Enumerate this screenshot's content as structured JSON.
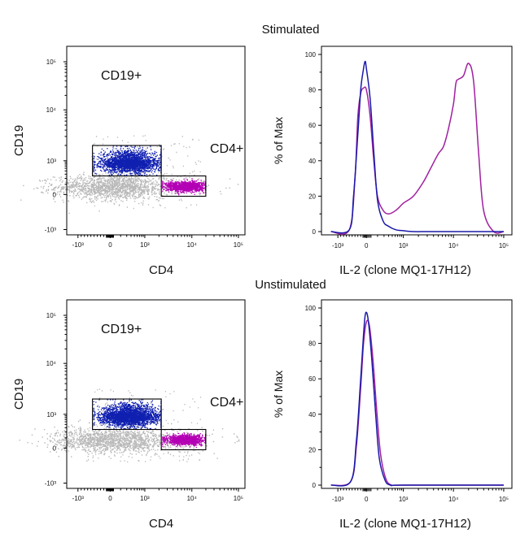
{
  "chart_data": [
    {
      "type": "scatter",
      "panel": "top-left",
      "section_title": "Stimulated",
      "xlabel": "CD4",
      "ylabel": "CD19",
      "x_ticks": [
        "-10³",
        "0",
        "10³",
        "10⁴",
        "10⁵"
      ],
      "y_ticks": [
        "10⁵",
        "10⁴",
        "10³",
        "0",
        "-10³"
      ],
      "gates": [
        {
          "name": "CD19+",
          "label": "CD19+",
          "color": "#1a1aa8"
        },
        {
          "name": "CD4+",
          "label": "CD4+",
          "color": "#b000b0"
        }
      ],
      "populations": [
        {
          "name": "CD19+ (gated)",
          "color": "#0f1fb0",
          "count": 2600
        },
        {
          "name": "CD4+ (gated)",
          "color": "#b400b4",
          "count": 1500
        },
        {
          "name": "ungated",
          "color": "#b8b8b8",
          "count": 1500
        }
      ]
    },
    {
      "type": "line",
      "panel": "top-right",
      "xlabel": "IL-2 (clone MQ1-17H12)",
      "ylabel": "% of Max",
      "x_ticks": [
        "-10³",
        "0",
        "10³",
        "10⁴",
        "10⁵"
      ],
      "y_ticks": [
        "100",
        "80",
        "60",
        "40",
        "20",
        "0"
      ],
      "ylim": [
        0,
        100
      ],
      "x_units": "decade position (-1 = -10³, 0 = 0, 1 = 10³, 2 = 10⁴, 3 = 10⁵)",
      "series": [
        {
          "name": "CD19+",
          "color": "#1a1aa8",
          "x": [
            -1.3,
            -0.6,
            -0.45,
            -0.3,
            -0.2,
            -0.12,
            -0.05,
            0.0,
            0.1,
            0.2,
            0.3,
            0.45,
            0.6,
            0.8,
            1.0,
            1.2,
            1.5,
            2.0,
            2.5,
            3.0
          ],
          "y": [
            0,
            1,
            20,
            55,
            80,
            90,
            96,
            92,
            75,
            45,
            18,
            6,
            3,
            1,
            0.5,
            0,
            0,
            0,
            0,
            0
          ]
        },
        {
          "name": "CD4+",
          "color": "#a020a0",
          "x": [
            -1.3,
            -0.6,
            -0.4,
            -0.3,
            -0.2,
            -0.1,
            0.0,
            0.1,
            0.2,
            0.3,
            0.45,
            0.6,
            0.8,
            1.0,
            1.2,
            1.4,
            1.55,
            1.7,
            1.8,
            1.9,
            2.0,
            2.05,
            2.1,
            2.2,
            2.3,
            2.4,
            2.5,
            2.6,
            2.8,
            3.0
          ],
          "y": [
            0,
            1,
            30,
            65,
            78,
            81,
            80,
            65,
            40,
            20,
            12,
            10,
            12,
            16,
            20,
            28,
            36,
            44,
            48,
            58,
            72,
            84,
            86,
            88,
            95,
            85,
            45,
            12,
            0,
            0
          ]
        }
      ]
    },
    {
      "type": "scatter",
      "panel": "bottom-left",
      "section_title": "Unstimulated",
      "xlabel": "CD4",
      "ylabel": "CD19",
      "x_ticks": [
        "-10³",
        "0",
        "10³",
        "10⁴",
        "10⁵"
      ],
      "y_ticks": [
        "10⁵",
        "10⁴",
        "10³",
        "0",
        "-10³"
      ],
      "gates": [
        {
          "name": "CD19+",
          "label": "CD19+",
          "color": "#1a1aa8"
        },
        {
          "name": "CD4+",
          "label": "CD4+",
          "color": "#b000b0"
        }
      ],
      "populations": [
        {
          "name": "CD19+ (gated)",
          "color": "#0f1fb0",
          "count": 3000
        },
        {
          "name": "CD4+ (gated)",
          "color": "#b400b4",
          "count": 1300
        },
        {
          "name": "ungated",
          "color": "#b8b8b8",
          "count": 1500
        }
      ]
    },
    {
      "type": "line",
      "panel": "bottom-right",
      "xlabel": "IL-2 (clone MQ1-17H12)",
      "ylabel": "% of Max",
      "x_ticks": [
        "-10³",
        "0",
        "10³",
        "10⁴",
        "10⁵"
      ],
      "y_ticks": [
        "100",
        "80",
        "60",
        "40",
        "20",
        "0"
      ],
      "ylim": [
        0,
        100
      ],
      "x_units": "decade position (-1 = -10³, 0 = 0, 1 = 10³, 2 = 10⁴, 3 = 10⁵)",
      "series": [
        {
          "name": "CD19+",
          "color": "#1a1aa8",
          "x": [
            -1.3,
            -0.55,
            -0.35,
            -0.2,
            -0.1,
            -0.03,
            0.05,
            0.15,
            0.25,
            0.35,
            0.5,
            0.65,
            1.0,
            3.0
          ],
          "y": [
            0,
            2,
            25,
            60,
            85,
            97,
            93,
            70,
            40,
            15,
            3,
            0,
            0,
            0
          ]
        },
        {
          "name": "CD4+",
          "color": "#a020a0",
          "x": [
            -1.3,
            -0.55,
            -0.35,
            -0.2,
            -0.1,
            0.0,
            0.08,
            0.18,
            0.28,
            0.38,
            0.52,
            0.68,
            1.0,
            3.0
          ],
          "y": [
            0,
            2,
            22,
            55,
            80,
            92,
            90,
            70,
            42,
            18,
            4,
            0,
            0,
            0
          ]
        }
      ]
    }
  ]
}
